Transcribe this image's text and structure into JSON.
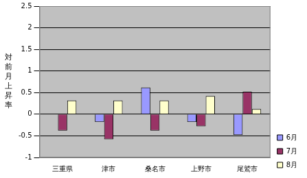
{
  "chart_data": {
    "type": "bar",
    "y_label": "対前月上昇率",
    "categories": [
      "三重県",
      "津市",
      "桑名市",
      "上野市",
      "尾鷲市"
    ],
    "series": [
      {
        "name": "6月",
        "color": "#9999ff",
        "values": [
          0,
          -0.18,
          0.62,
          -0.18,
          -0.48
        ]
      },
      {
        "name": "7月",
        "color": "#993366",
        "values": [
          -0.38,
          -0.58,
          -0.38,
          -0.28,
          0.52
        ]
      },
      {
        "name": "8月",
        "color": "#ffffcc",
        "values": [
          0.32,
          0.32,
          0.32,
          0.42,
          0.12
        ]
      }
    ],
    "ylim": [
      -1,
      2.5
    ],
    "yticks": [
      -1,
      -0.5,
      0,
      0.5,
      1,
      1.5,
      2,
      2.5
    ],
    "grid": true,
    "legend": "right"
  }
}
